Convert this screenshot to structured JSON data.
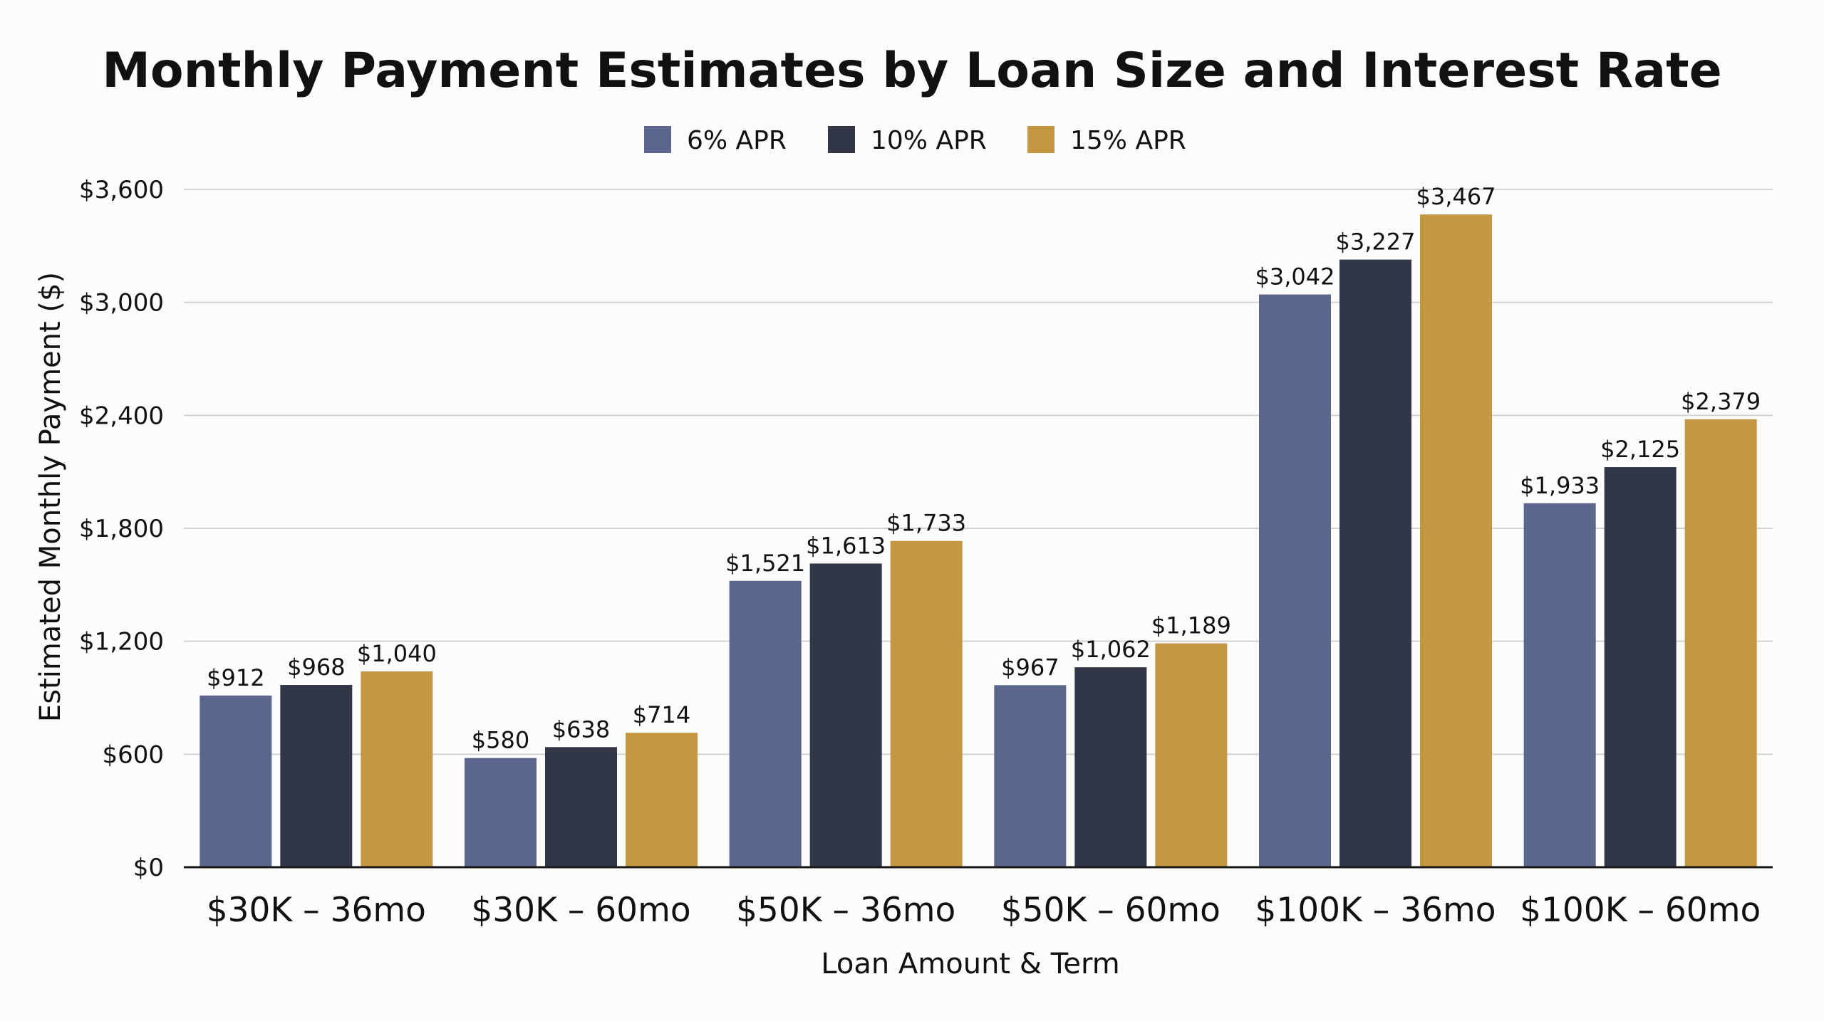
{
  "chart_data": {
    "type": "bar",
    "title": "Monthly Payment Estimates by Loan Size and Interest Rate",
    "xlabel": "Loan Amount & Term",
    "ylabel": "Estimated Monthly Payment ($)",
    "ylim": [
      0,
      3600
    ],
    "yticks": [
      0,
      600,
      1200,
      1800,
      2400,
      3000,
      3600
    ],
    "ytick_labels": [
      "$0",
      "$600",
      "$1,200",
      "$1,800",
      "$2,400",
      "$3,000",
      "$3,600"
    ],
    "grid": true,
    "legend_position": "top-center",
    "categories": [
      "$30K – 36mo",
      "$30K – 60mo",
      "$50K – 36mo",
      "$50K – 60mo",
      "$100K – 36mo",
      "$100K – 60mo"
    ],
    "series": [
      {
        "name": "6% APR",
        "color": "#5b668d",
        "values": [
          912,
          580,
          1521,
          967,
          3042,
          1933
        ],
        "labels": [
          "$912",
          "$580",
          "$1,521",
          "$967",
          "$3,042",
          "$1,933"
        ]
      },
      {
        "name": "10% APR",
        "color": "#323748",
        "values": [
          968,
          638,
          1613,
          1062,
          3227,
          2125
        ],
        "labels": [
          "$968",
          "$638",
          "$1,613",
          "$1,062",
          "$3,227",
          "$2,125"
        ]
      },
      {
        "name": "15% APR",
        "color": "#c49843",
        "values": [
          1040,
          714,
          1733,
          1189,
          3467,
          2379
        ],
        "labels": [
          "$1,040",
          "$714",
          "$1,733",
          "$1,189",
          "$3,467",
          "$2,379"
        ]
      }
    ]
  }
}
